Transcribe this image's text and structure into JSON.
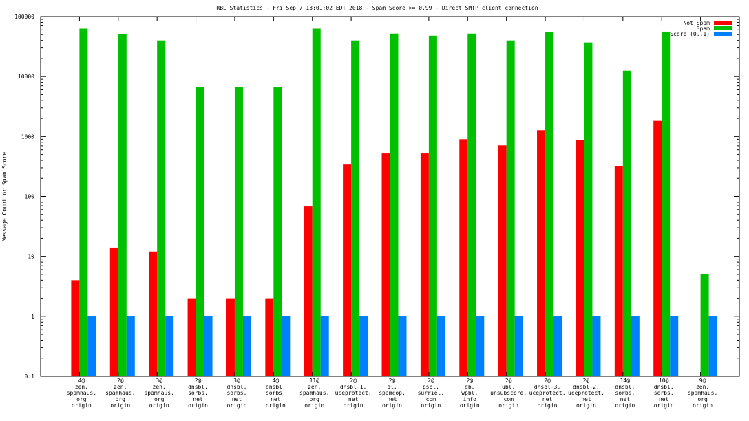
{
  "chart_data": {
    "type": "bar",
    "title": "RBL Statistics - Fri Sep  7 13:01:02 EDT 2018 - Spam Score >= 0.99 - Direct SMTP client connection",
    "ylabel": "Message Count or Spam Score",
    "xlabel": "",
    "yscale": "log",
    "ylim": [
      0.1,
      100000
    ],
    "yticks": [
      "0.1",
      "1",
      "10",
      "100",
      "1000",
      "10000",
      "100000"
    ],
    "grid": false,
    "legend_position": "top-right",
    "categories": [
      [
        "4@",
        "zen.",
        "spamhaus.",
        "org",
        "origin"
      ],
      [
        "2@",
        "zen.",
        "spamhaus.",
        "org",
        "origin"
      ],
      [
        "3@",
        "zen.",
        "spamhaus.",
        "org",
        "origin"
      ],
      [
        "2@",
        "dnsbl.",
        "sorbs.",
        "net",
        "origin"
      ],
      [
        "3@",
        "dnsbl.",
        "sorbs.",
        "net",
        "origin"
      ],
      [
        "4@",
        "dnsbl.",
        "sorbs.",
        "net",
        "origin"
      ],
      [
        "11@",
        "zen.",
        "spamhaus.",
        "org",
        "origin"
      ],
      [
        "2@",
        "dnsbl-1.",
        "uceprotect.",
        "net",
        "origin"
      ],
      [
        "2@",
        "bl.",
        "spamcop.",
        "net",
        "origin"
      ],
      [
        "2@",
        "psbl.",
        "surriel.",
        "com",
        "origin"
      ],
      [
        "2@",
        "db.",
        "wpbl.",
        "info",
        "origin"
      ],
      [
        "2@",
        "ubl.",
        "unsubscore.",
        "com",
        "origin"
      ],
      [
        "2@",
        "dnsbl-3.",
        "uceprotect.",
        "net",
        "origin"
      ],
      [
        "2@",
        "dnsbl-2.",
        "uceprotect.",
        "net",
        "origin"
      ],
      [
        "14@",
        "dnsbl.",
        "sorbs.",
        "net",
        "origin"
      ],
      [
        "10@",
        "dnsbl.",
        "sorbs.",
        "net",
        "origin"
      ],
      [
        "9@",
        "zen.",
        "spamhaus.",
        "org",
        "origin"
      ]
    ],
    "series": [
      {
        "name": "Not Spam",
        "color": "#ff0000",
        "values": [
          4,
          14,
          12,
          2,
          2,
          2,
          68,
          340,
          520,
          520,
          900,
          710,
          1270,
          880,
          320,
          1820,
          null
        ]
      },
      {
        "name": "Spam",
        "color": "#00c000",
        "values": [
          63000,
          51000,
          40000,
          6700,
          6700,
          6700,
          63000,
          40000,
          52000,
          48000,
          52000,
          40000,
          55000,
          37000,
          12500,
          56000,
          5
        ]
      },
      {
        "name": "Score (0..1)",
        "color": "#0080ff",
        "values": [
          1,
          1,
          1,
          1,
          1,
          1,
          1,
          1,
          1,
          1,
          1,
          1,
          1,
          1,
          1,
          1,
          1
        ]
      }
    ]
  }
}
